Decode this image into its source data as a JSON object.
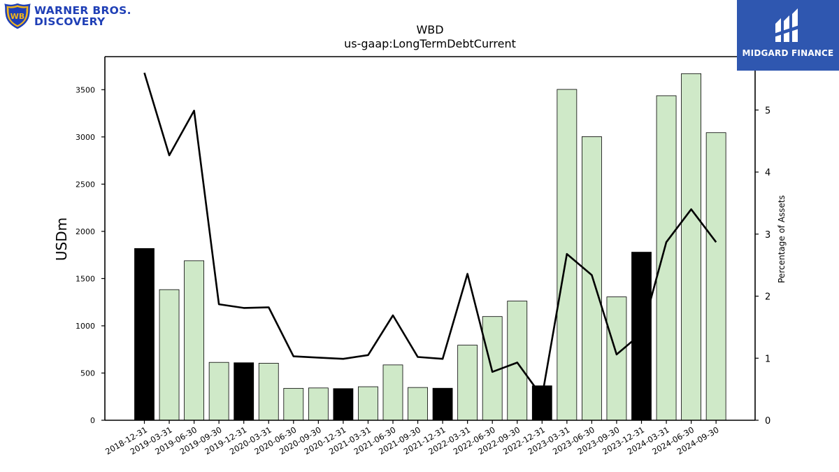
{
  "branding": {
    "company_logo_line1": "WARNER BROS.",
    "company_logo_line2": "DISCOVERY",
    "publisher_name": "MIDGARD FINANCE",
    "company_color": "#1f3fb6",
    "publisher_bg_color": "#2f57b0"
  },
  "chart_data": {
    "type": "bar",
    "title": "WBD",
    "subtitle": "us-gaap:LongTermDebtCurrent",
    "ylabel": "USDm",
    "y2label": "Percentage of Assets",
    "ylim": [
      0,
      3850
    ],
    "y2lim": [
      0,
      5.86
    ],
    "yticks": [
      0,
      500,
      1000,
      1500,
      2000,
      2500,
      3000,
      3500
    ],
    "y2ticks": [
      0,
      1,
      2,
      3,
      4,
      5
    ],
    "grid": false,
    "categories": [
      "2018-12-31",
      "2019-03-31",
      "2019-06-30",
      "2019-09-30",
      "2019-12-31",
      "2020-03-31",
      "2020-06-30",
      "2020-09-30",
      "2020-12-31",
      "2021-03-31",
      "2021-06-30",
      "2021-09-30",
      "2021-12-31",
      "2022-03-31",
      "2022-06-30",
      "2022-09-30",
      "2022-12-31",
      "2023-03-31",
      "2023-06-30",
      "2023-09-30",
      "2023-12-31",
      "2024-03-31",
      "2024-06-30",
      "2024-09-30"
    ],
    "series": [
      {
        "name": "",
        "type": "bar",
        "axis": "left",
        "values": [
          1819,
          1383,
          1689,
          613,
          609,
          604,
          338,
          342,
          335,
          355,
          586,
          347,
          339,
          795,
          1098,
          1262,
          365,
          3503,
          3003,
          1306,
          1780,
          3436,
          3670,
          3045
        ],
        "highlight": [
          true,
          false,
          false,
          false,
          true,
          false,
          false,
          false,
          true,
          false,
          false,
          false,
          true,
          false,
          false,
          false,
          true,
          false,
          false,
          false,
          true,
          false,
          false,
          false
        ],
        "color": "#cfe9c8",
        "highlight_color": "#000000"
      },
      {
        "name": "",
        "type": "line",
        "axis": "right",
        "values": [
          5.6,
          4.27,
          4.99,
          1.87,
          1.81,
          1.82,
          1.03,
          1.01,
          0.99,
          1.05,
          1.69,
          1.02,
          0.99,
          2.36,
          0.78,
          0.93,
          0.38,
          2.68,
          2.34,
          1.06,
          1.4,
          2.87,
          3.4,
          2.87
        ],
        "color": "#000000"
      }
    ]
  }
}
